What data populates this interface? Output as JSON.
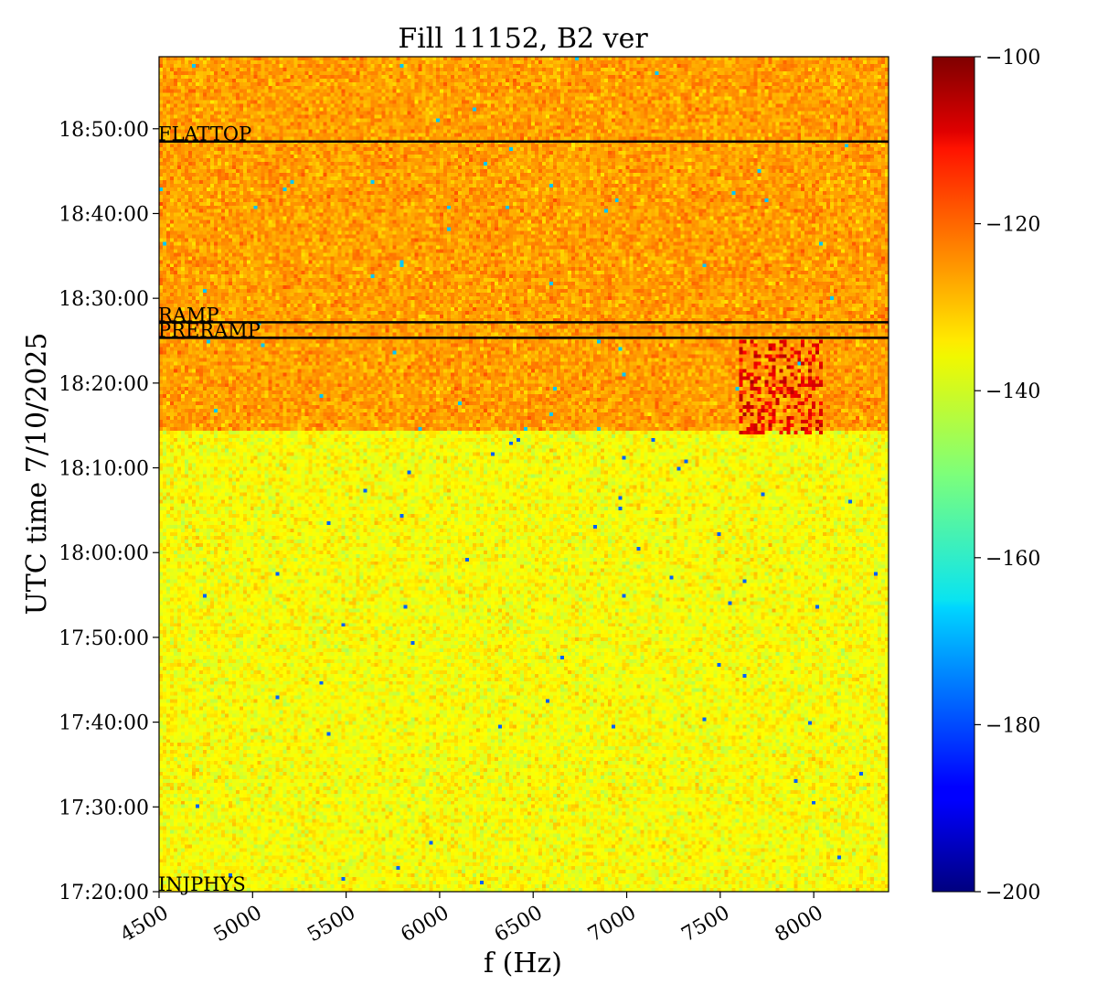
{
  "chart_data": {
    "type": "heatmap",
    "title": "Fill 11152, B2 ver",
    "xlabel": "f (Hz)",
    "ylabel": "UTC time 7/10/2025",
    "xlim": [
      4500,
      8400
    ],
    "ylim": [
      "17:20:00",
      "18:58:30"
    ],
    "x_ticks": [
      "4500",
      "5000",
      "5500",
      "6000",
      "6500",
      "7000",
      "7500",
      "8000"
    ],
    "y_ticks": [
      "17:20:00",
      "17:30:00",
      "17:40:00",
      "17:50:00",
      "18:00:00",
      "18:10:00",
      "18:20:00",
      "18:30:00",
      "18:40:00",
      "18:50:00"
    ],
    "colorbar": {
      "colormap": "jet",
      "range": [
        -200,
        -100
      ],
      "ticks": [
        "-100",
        "-120",
        "-140",
        "-160",
        "-180",
        "-200"
      ]
    },
    "regions": [
      {
        "t_start": "17:20:00",
        "t_end": "18:14:30",
        "level": -138
      },
      {
        "t_start": "18:14:30",
        "t_end": "18:58:30",
        "level": -128
      }
    ],
    "burst": {
      "f_start": 7600,
      "f_end": 8050,
      "t_start": "18:14:00",
      "t_end": "18:25:00",
      "level": -110
    },
    "events": [
      {
        "label": "INJPHYS",
        "time": "17:20:00"
      },
      {
        "label": "PRERAMP",
        "time": "18:25:20"
      },
      {
        "label": "RAMP",
        "time": "18:27:10"
      },
      {
        "label": "FLATTOP",
        "time": "18:48:30"
      }
    ],
    "grid": false
  }
}
